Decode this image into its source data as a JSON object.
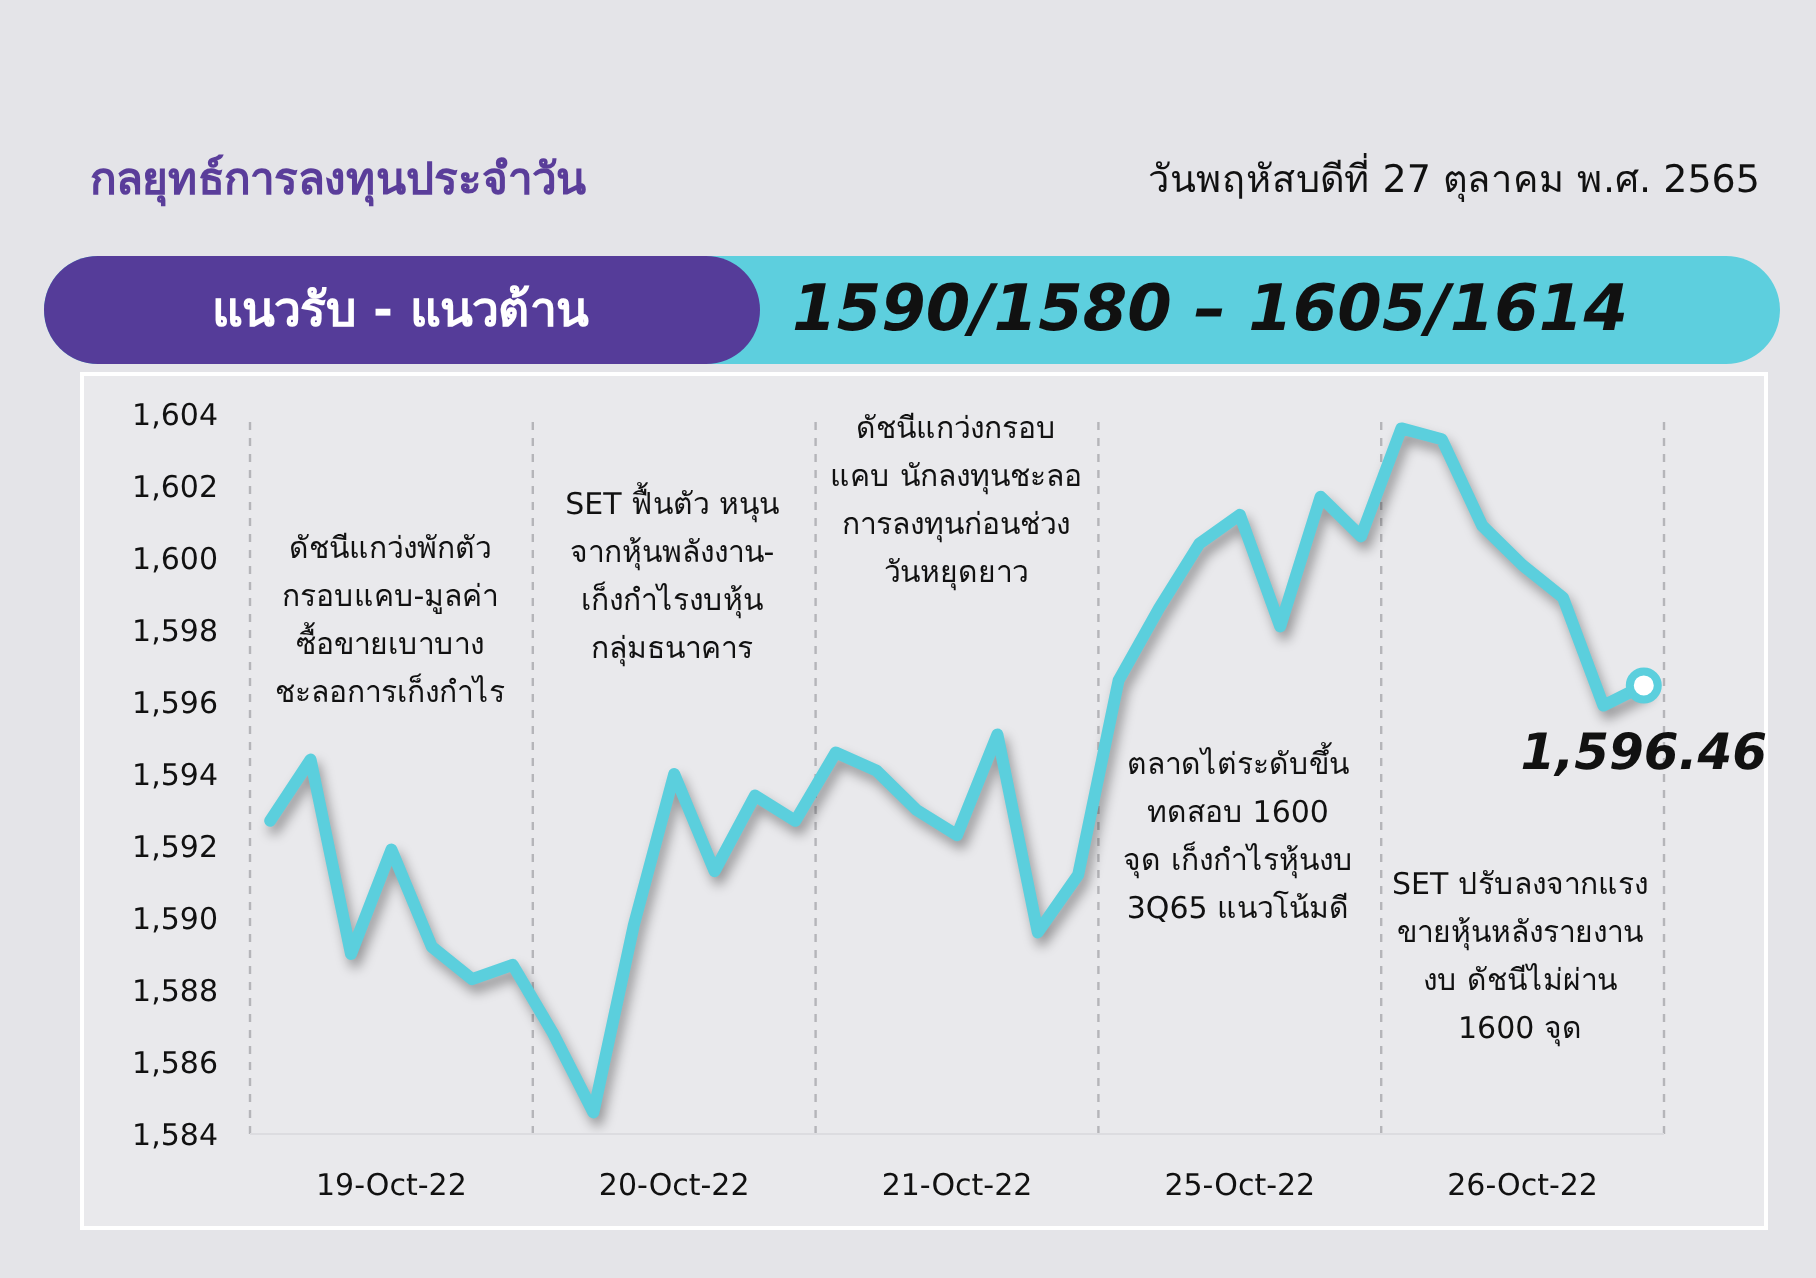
{
  "chart_data": {
    "type": "line",
    "title": "กลยุทธ์การลงทุนประจำวัน",
    "subtitle": "วันพฤหัสบดีที่ 27 ตุลาคม พ.ศ. 2565",
    "annotations": [
      "แนวรับ - แนวต้าน",
      "1590/1580 –  1605/1614",
      "ดัชนีแกว่งพักตัว\nกรอบแคบ-มูลค่า\nซื้อขายเบาบาง\nชะลอการเก็งกำไร",
      "SET ฟื้นตัว หนุน\nจากหุ้นพลังงาน-\nเก็งกำไรงบหุ้น\nกลุ่มธนาคาร",
      "ดัชนีแกว่งกรอบ\nแคบ นักลงทุนชะลอ\nการลงทุนก่อนช่วง\nวันหยุดยาว",
      "ตลาดไต่ระดับขึ้น\nทดสอบ 1600\nจุด เก็งกำไรหุ้นงบ\n3Q65 แนวโน้มดี",
      "SET ปรับลงจากแรง\nขายหุ้นหลังรายงาน\nงบ ดัชนีไม่ผ่าน\n1600 จุด"
    ],
    "categories": [
      null,
      null,
      null,
      "19-Oct-22",
      null,
      null,
      null,
      null,
      null,
      null,
      "20-Oct-22",
      null,
      null,
      null,
      null,
      null,
      null,
      "21-Oct-22",
      null,
      null,
      null,
      null,
      null,
      null,
      "25-Oct-22",
      null,
      null,
      null,
      null,
      null,
      null,
      "26-Oct-22",
      null,
      null,
      null
    ],
    "series": [
      {
        "color": "#5bcfdd",
        "values": [
          1592.7,
          1594.4,
          1589.0,
          1591.9,
          1589.2,
          1588.3,
          1588.7,
          1586.8,
          1584.6,
          1589.8,
          1594.0,
          1591.3,
          1593.4,
          1592.7,
          1594.6,
          1594.1,
          1593.0,
          1592.3,
          1595.1,
          1589.6,
          1591.2,
          1596.6,
          1598.6,
          1600.4,
          1601.2,
          1598.1,
          1601.7,
          1600.6,
          1603.6,
          1603.3,
          1600.9,
          1599.8,
          1598.9,
          1595.9,
          1596.46
        ],
        "value_labels": [
          null,
          null,
          null,
          null,
          null,
          null,
          null,
          null,
          null,
          null,
          null,
          null,
          null,
          null,
          null,
          null,
          null,
          null,
          null,
          null,
          null,
          null,
          null,
          null,
          null,
          null,
          null,
          null,
          null,
          null,
          null,
          null,
          null,
          null,
          "1,596.46"
        ]
      }
    ],
    "ylim": [
      1584,
      1604
    ],
    "yticks": [
      {
        "value": 1584,
        "label": "1,584"
      },
      {
        "value": 1586,
        "label": "1,586"
      },
      {
        "value": 1588,
        "label": "1,588"
      },
      {
        "value": 1590,
        "label": "1,590"
      },
      {
        "value": 1592,
        "label": "1,592"
      },
      {
        "value": 1594,
        "label": "1,594"
      },
      {
        "value": 1596,
        "label": "1,596"
      },
      {
        "value": 1598,
        "label": "1,598"
      },
      {
        "value": 1600,
        "label": "1,600"
      },
      {
        "value": 1602,
        "label": "1,602"
      },
      {
        "value": 1604,
        "label": "1,604"
      }
    ],
    "grid": false,
    "legend": false,
    "line_style": "solid"
  }
}
